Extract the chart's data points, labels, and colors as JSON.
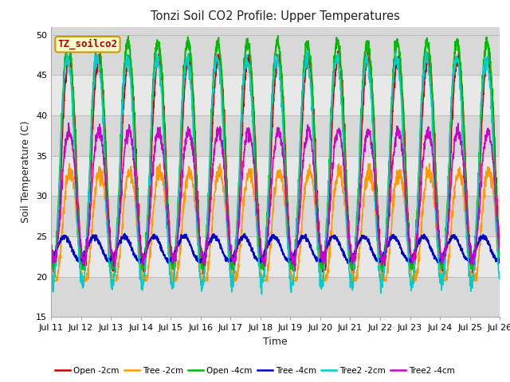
{
  "title": "Tonzi Soil CO2 Profile: Upper Temperatures",
  "xlabel": "Time",
  "ylabel": "Soil Temperature (C)",
  "ylim": [
    15,
    51
  ],
  "yticks": [
    15,
    20,
    25,
    30,
    35,
    40,
    45,
    50
  ],
  "xtick_labels": [
    "Jul 11",
    "Jul 12",
    "Jul 13",
    "Jul 14",
    "Jul 15",
    "Jul 16",
    "Jul 17",
    "Jul 18",
    "Jul 19",
    "Jul 20",
    "Jul 21",
    "Jul 22",
    "Jul 23",
    "Jul 24",
    "Jul 25",
    "Jul 26"
  ],
  "xtick_positions": [
    0,
    1,
    2,
    3,
    4,
    5,
    6,
    7,
    8,
    9,
    10,
    11,
    12,
    13,
    14,
    15
  ],
  "series": {
    "Open -2cm": {
      "color": "#cc0000",
      "lw": 1.2,
      "base": 34,
      "amp": 13,
      "phase": 0.35,
      "noise": 0.4
    },
    "Tree -2cm": {
      "color": "#ff9900",
      "lw": 1.2,
      "base": 26,
      "amp": 7,
      "phase": 0.38,
      "noise": 0.5
    },
    "Open -4cm": {
      "color": "#00bb00",
      "lw": 1.5,
      "base": 35,
      "amp": 14,
      "phase": 0.32,
      "noise": 0.4
    },
    "Tree -4cm": {
      "color": "#0000cc",
      "lw": 1.5,
      "base": 23.5,
      "amp": 1.5,
      "phase": 0.2,
      "noise": 0.15
    },
    "Tree2 -2cm": {
      "color": "#00cccc",
      "lw": 1.2,
      "base": 33,
      "amp": 13,
      "phase": 0.3,
      "noise": 0.5
    },
    "Tree2 -4cm": {
      "color": "#cc00cc",
      "lw": 1.2,
      "base": 30,
      "amp": 8,
      "phase": 0.33,
      "noise": 0.4
    }
  },
  "series_order": [
    "Open -2cm",
    "Tree -2cm",
    "Open -4cm",
    "Tree -4cm",
    "Tree2 -2cm",
    "Tree2 -4cm"
  ],
  "plot_bg_bands": [
    {
      "ymin": 15,
      "ymax": 20,
      "color": "#d8d8d8"
    },
    {
      "ymin": 20,
      "ymax": 25,
      "color": "#e8e8e8"
    },
    {
      "ymin": 25,
      "ymax": 30,
      "color": "#d8d8d8"
    },
    {
      "ymin": 30,
      "ymax": 35,
      "color": "#e8e8e8"
    },
    {
      "ymin": 35,
      "ymax": 40,
      "color": "#d8d8d8"
    },
    {
      "ymin": 40,
      "ymax": 45,
      "color": "#e8e8e8"
    },
    {
      "ymin": 45,
      "ymax": 51,
      "color": "#d8d8d8"
    }
  ],
  "grid_color": "#bbbbbb",
  "annotation_text": "TZ_soilco2",
  "annotation_color": "#aa0000",
  "annotation_bg": "#ffffcc",
  "annotation_edge": "#cc9900"
}
